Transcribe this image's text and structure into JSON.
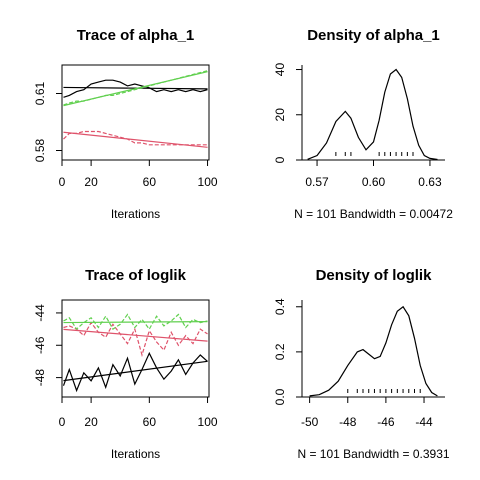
{
  "chart_data": [
    {
      "type": "line",
      "title": "Trace of alpha_1",
      "xlabel": "Iterations",
      "ylabel": "",
      "xlim": [
        0,
        101
      ],
      "ylim": [
        0.575,
        0.625
      ],
      "x_ticks": [
        "0",
        "20",
        "60",
        "100"
      ],
      "y_ticks": [
        "0.58",
        "0.61"
      ],
      "x": [
        1,
        5,
        10,
        15,
        20,
        25,
        30,
        35,
        40,
        45,
        50,
        55,
        60,
        65,
        70,
        75,
        80,
        85,
        90,
        95,
        100
      ],
      "series": [
        {
          "color": "#000000",
          "values": [
            0.608,
            0.609,
            0.611,
            0.612,
            0.615,
            0.616,
            0.617,
            0.617,
            0.616,
            0.614,
            0.615,
            0.614,
            0.613,
            0.611,
            0.612,
            0.611,
            0.612,
            0.611,
            0.612,
            0.611,
            0.612
          ]
        },
        {
          "color": "#DF536B",
          "values": [
            0.586,
            0.589,
            0.589,
            0.59,
            0.59,
            0.59,
            0.589,
            0.588,
            0.587,
            0.586,
            0.584,
            0.584,
            0.583,
            0.583,
            0.583,
            0.583,
            0.583,
            0.583,
            0.583,
            0.583,
            0.583
          ]
        },
        {
          "color": "#61D04F",
          "values": [
            0.604,
            0.605,
            0.606,
            0.606,
            0.607,
            0.608,
            0.609,
            0.609,
            0.61,
            0.611,
            0.612,
            0.613,
            0.614,
            0.615,
            0.616,
            0.617,
            0.618,
            0.619,
            0.62,
            0.621,
            0.622
          ]
        }
      ]
    },
    {
      "type": "area",
      "title": "Density of alpha_1",
      "xlabel": "N = 101   Bandwidth = 0.00472",
      "ylabel": "",
      "xlim": [
        0.562,
        0.638
      ],
      "ylim": [
        0,
        42
      ],
      "x_ticks": [
        "0.57",
        "0.60",
        "0.63"
      ],
      "y_ticks": [
        "0",
        "20",
        "40"
      ],
      "x": [
        0.565,
        0.57,
        0.575,
        0.58,
        0.585,
        0.588,
        0.592,
        0.596,
        0.6,
        0.603,
        0.606,
        0.609,
        0.612,
        0.615,
        0.618,
        0.621,
        0.624,
        0.627,
        0.63,
        0.634
      ],
      "values": [
        0.3,
        2.0,
        7.5,
        17.0,
        21.5,
        18.5,
        10.0,
        4.5,
        8.0,
        17.5,
        30.0,
        38.0,
        40.0,
        36.5,
        27.0,
        15.0,
        6.5,
        2.0,
        0.7,
        0.2
      ]
    },
    {
      "type": "line",
      "title": "Trace of loglik",
      "xlabel": "Iterations",
      "ylabel": "",
      "xlim": [
        0,
        101
      ],
      "ylim": [
        -49.2,
        -43.2
      ],
      "x_ticks": [
        "0",
        "20",
        "60",
        "100"
      ],
      "y_ticks": [
        "-48",
        "-46",
        "-44"
      ],
      "x": [
        1,
        5,
        10,
        15,
        20,
        25,
        30,
        35,
        40,
        45,
        50,
        55,
        60,
        65,
        70,
        75,
        80,
        85,
        90,
        95,
        100
      ],
      "series": [
        {
          "color": "#000000",
          "values": [
            -48.5,
            -47.5,
            -48.8,
            -47.7,
            -48.2,
            -47.4,
            -48.6,
            -47.2,
            -47.9,
            -46.8,
            -48.4,
            -47.5,
            -46.5,
            -47.4,
            -48.1,
            -47.6,
            -46.9,
            -47.8,
            -47.1,
            -46.6,
            -47.0
          ]
        },
        {
          "color": "#DF536B",
          "values": [
            -44.9,
            -44.8,
            -45.0,
            -45.4,
            -44.6,
            -45.2,
            -45.5,
            -44.7,
            -45.3,
            -45.9,
            -45.0,
            -46.6,
            -45.1,
            -45.8,
            -46.3,
            -45.2,
            -46.0,
            -45.4,
            -45.9,
            -45.0,
            -45.3
          ]
        },
        {
          "color": "#61D04F",
          "values": [
            -44.5,
            -44.3,
            -45.0,
            -44.6,
            -44.3,
            -44.9,
            -44.2,
            -45.0,
            -44.7,
            -44.1,
            -44.9,
            -44.4,
            -45.0,
            -44.2,
            -44.8,
            -44.5,
            -44.1,
            -44.9,
            -44.4,
            -44.6,
            -44.5
          ]
        }
      ]
    },
    {
      "type": "area",
      "title": "Density of loglik",
      "xlabel": "N = 101   Bandwidth = 0.3931",
      "ylabel": "",
      "xlim": [
        -50.4,
        -42.9
      ],
      "ylim": [
        0,
        0.43
      ],
      "x_ticks": [
        "-50",
        "-48",
        "-46",
        "-44"
      ],
      "y_ticks": [
        "0.0",
        "0.2",
        "0.4"
      ],
      "x": [
        -50.0,
        -49.5,
        -49.0,
        -48.5,
        -48.0,
        -47.5,
        -47.2,
        -46.9,
        -46.6,
        -46.3,
        -46.0,
        -45.7,
        -45.4,
        -45.1,
        -44.8,
        -44.5,
        -44.2,
        -43.9,
        -43.6,
        -43.3
      ],
      "values": [
        0.005,
        0.01,
        0.03,
        0.07,
        0.14,
        0.2,
        0.21,
        0.19,
        0.17,
        0.18,
        0.24,
        0.32,
        0.38,
        0.4,
        0.36,
        0.26,
        0.14,
        0.06,
        0.02,
        0.005
      ]
    }
  ]
}
